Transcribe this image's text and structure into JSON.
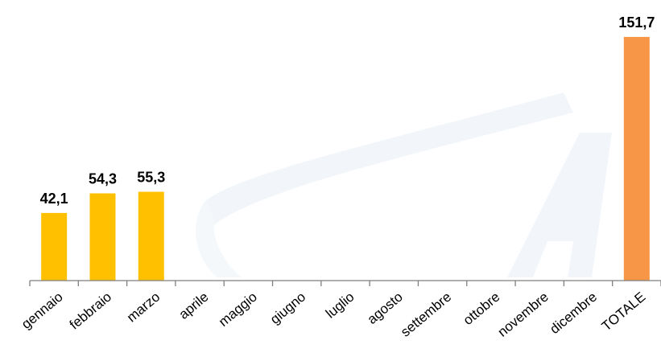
{
  "chart_data": {
    "type": "bar",
    "title": "",
    "xlabel": "",
    "ylabel": "",
    "categories": [
      "gennaio",
      "febbraio",
      "marzo",
      "aprile",
      "maggio",
      "giugno",
      "luglio",
      "agosto",
      "settembre",
      "ottobre",
      "novembre",
      "dicembre",
      "TOTALE"
    ],
    "values": [
      42.1,
      54.3,
      55.3,
      null,
      null,
      null,
      null,
      null,
      null,
      null,
      null,
      null,
      151.7
    ],
    "value_labels": [
      "42,1",
      "54,3",
      "55,3",
      "",
      "",
      "",
      "",
      "",
      "",
      "",
      "",
      "",
      "151,7"
    ],
    "ylim": [
      0,
      160
    ],
    "grid": false,
    "legend": "none",
    "colors": {
      "month_bars": "#FFC000",
      "total_bar": "#F79646",
      "axis": "#7F7F7F",
      "watermark": "#EAF1F8"
    }
  }
}
